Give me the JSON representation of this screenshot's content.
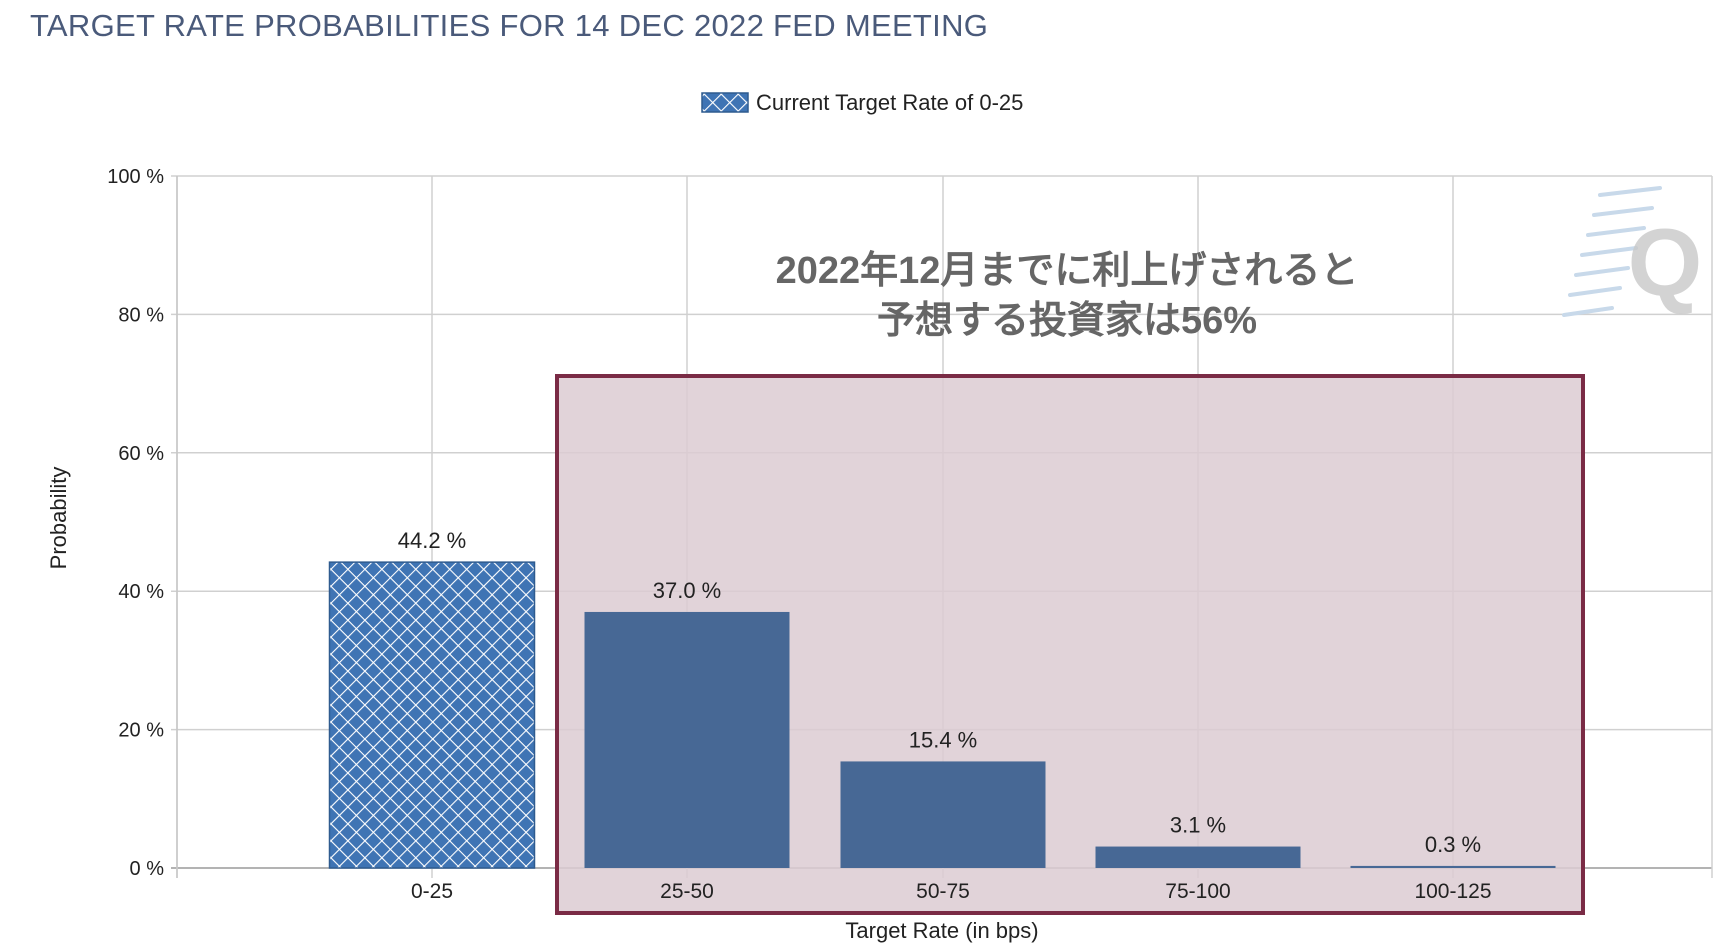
{
  "chart_data": {
    "type": "bar",
    "title": "TARGET RATE PROBABILITIES FOR 14 DEC 2022 FED MEETING",
    "legend": {
      "label": "Current Target Rate of 0-25",
      "placement": "top-center"
    },
    "xlabel": "Target Rate (in bps)",
    "ylabel": "Probability",
    "ylim": [
      0,
      100
    ],
    "yticks": [
      0,
      20,
      40,
      60,
      80,
      100
    ],
    "ytick_suffix": " %",
    "grid": true,
    "categories": [
      "0-25",
      "25-50",
      "50-75",
      "75-100",
      "100-125"
    ],
    "values": [
      44.2,
      37.0,
      15.4,
      3.1,
      0.3
    ],
    "value_labels": [
      "44.2 %",
      "37.0 %",
      "15.4 %",
      "3.1 %",
      "0.3 %"
    ],
    "current_index": 0,
    "colors": {
      "bar": "#476895",
      "current_bar": "#3f74b4",
      "highlight_fill": "#dccbd2",
      "highlight_border": "#7a2b45",
      "grid": "#d0d0d0",
      "watermark": "#c8d9ea"
    },
    "annotation": {
      "lines": [
        "2022年12月までに利上げされると",
        "予想する投資家は56%"
      ],
      "highlight_categories": [
        "25-50",
        "50-75",
        "75-100",
        "100-125"
      ]
    },
    "watermark": "Q"
  }
}
